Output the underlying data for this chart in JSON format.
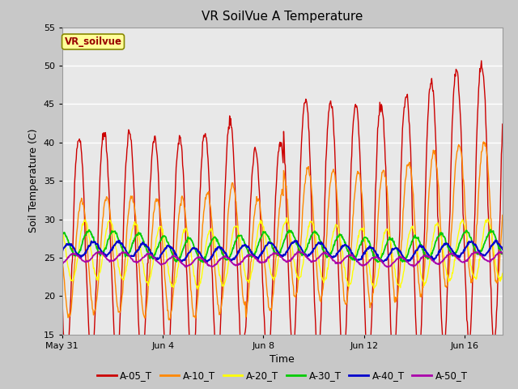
{
  "title": "VR SoilVue A Temperature",
  "xlabel": "Time",
  "ylabel": "Soil Temperature (C)",
  "ylim": [
    15,
    55
  ],
  "xlim_days": [
    0,
    17.5
  ],
  "yticks": [
    15,
    20,
    25,
    30,
    35,
    40,
    45,
    50,
    55
  ],
  "xtick_labels": [
    "May 31",
    "Jun 4",
    "Jun 8",
    "Jun 12",
    "Jun 16"
  ],
  "xtick_positions": [
    0,
    4,
    8,
    12,
    16
  ],
  "series_colors": {
    "A-05_T": "#cc0000",
    "A-10_T": "#ff8800",
    "A-20_T": "#ffff00",
    "A-30_T": "#00cc00",
    "A-40_T": "#0000cc",
    "A-50_T": "#aa00aa"
  },
  "series_order": [
    "A-05_T",
    "A-10_T",
    "A-20_T",
    "A-30_T",
    "A-40_T",
    "A-50_T"
  ],
  "fig_bg_color": "#c8c8c8",
  "plot_bg_color": "#e8e8e8",
  "grid_color": "#ffffff",
  "legend_label": "VR_soilvue",
  "legend_box_color": "#ffff99",
  "legend_text_color": "#990000"
}
